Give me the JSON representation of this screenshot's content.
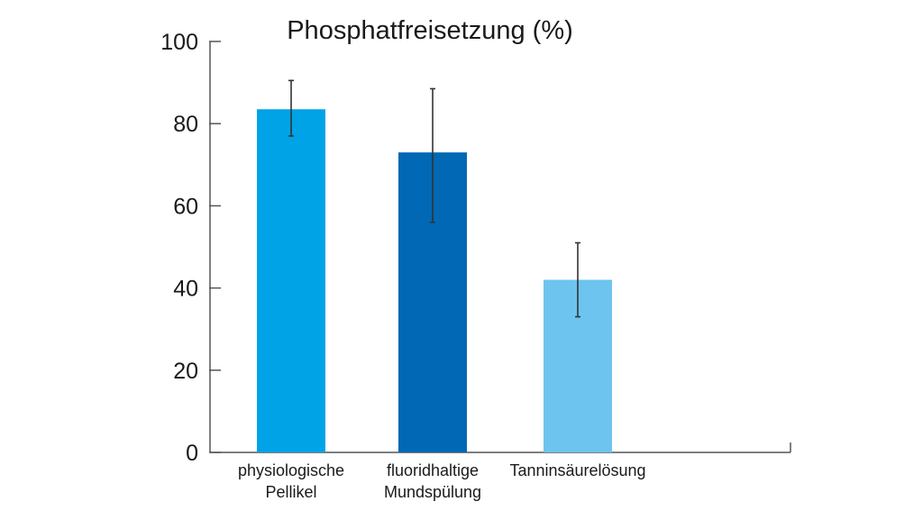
{
  "chart_data": {
    "type": "bar",
    "title": "Phosphatfreisetzung (%)",
    "xlabel": "",
    "ylabel": "",
    "ylim": [
      0,
      100
    ],
    "yticks": [
      0,
      20,
      40,
      60,
      80,
      100
    ],
    "grid": false,
    "legend": "none",
    "categories": [
      [
        "physiologische",
        "Pellikel"
      ],
      [
        "fluoridhaltige",
        "Mundspülung"
      ],
      [
        "Tanninsäurelösung"
      ]
    ],
    "values": [
      83.5,
      73,
      42
    ],
    "error_low": [
      77,
      56,
      33
    ],
    "error_high": [
      90.5,
      88.5,
      51
    ],
    "colors": [
      "#00a3e6",
      "#0068b4",
      "#6cc4ef"
    ]
  }
}
